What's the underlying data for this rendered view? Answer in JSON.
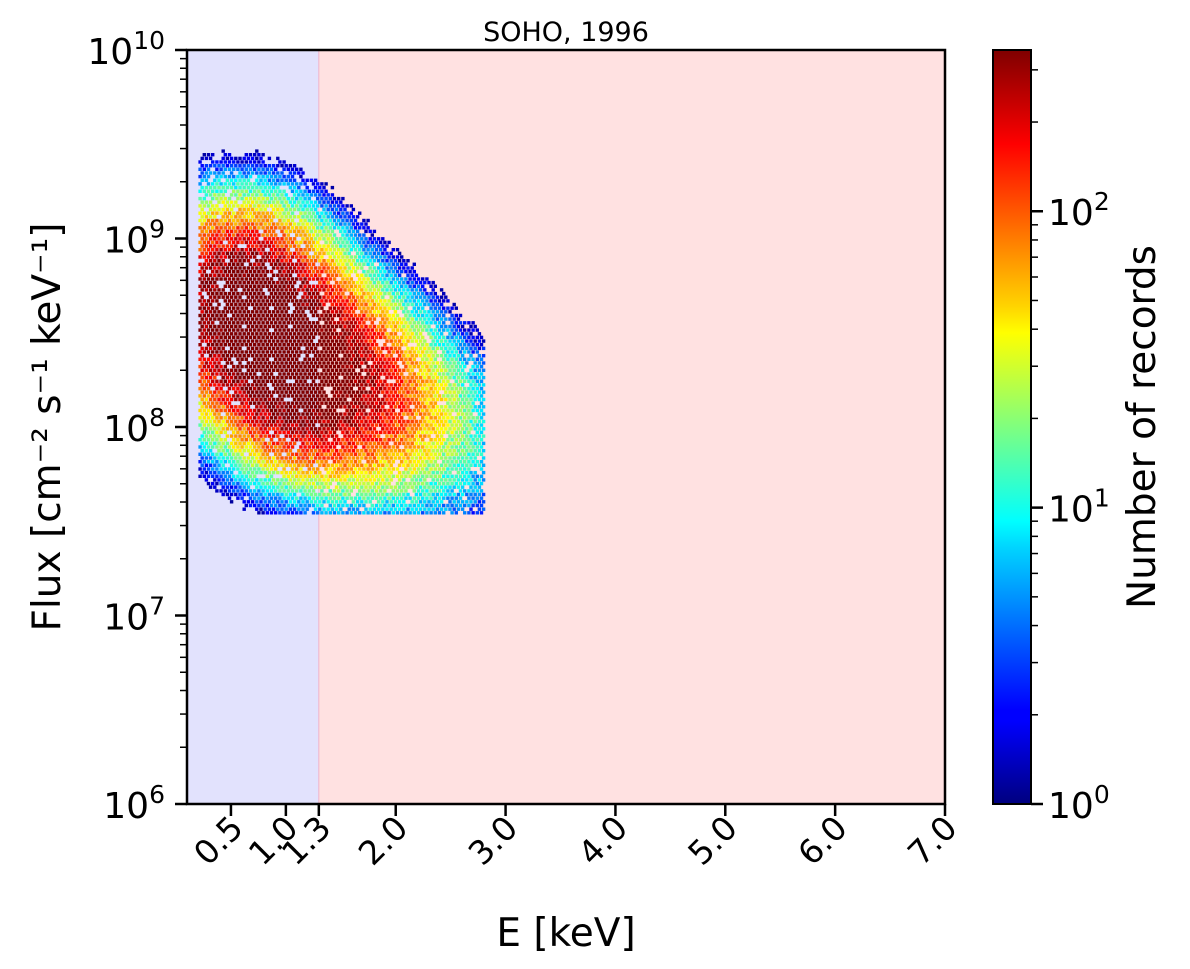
{
  "chart_data": {
    "type": "heatmap",
    "title": "SOHO, 1996",
    "xlabel": "E [keV]",
    "ylabel": "Flux [cm⁻² s⁻¹ keV⁻¹]",
    "xlim": [
      0.1,
      7.0
    ],
    "ylim": [
      1000000,
      10000000000
    ],
    "y_scale": "log",
    "x_ticks": [
      "0.5",
      "1.0",
      "1.3",
      "2.0",
      "3.0",
      "4.0",
      "5.0",
      "6.0",
      "7.0"
    ],
    "x_tick_values": [
      0.5,
      1.0,
      1.3,
      2.0,
      3.0,
      4.0,
      5.0,
      6.0,
      7.0
    ],
    "y_tick_exponents": [
      "6",
      "7",
      "8",
      "9",
      "10"
    ],
    "colorbar": {
      "label": "Number of records",
      "scale": "log",
      "range": [
        1,
        350
      ],
      "tick_exponents": [
        "0",
        "1",
        "2"
      ],
      "colormap": "jet"
    },
    "shaded_regions": [
      {
        "x_from": 0.1,
        "x_to": 1.3,
        "color": "#e2e2fd"
      },
      {
        "x_from": 1.3,
        "x_to": 7.0,
        "color": "#ffe1e1"
      }
    ],
    "density_peaks": [
      {
        "E": 0.55,
        "flux": 500000000,
        "count": 300
      },
      {
        "E": 0.75,
        "flux": 350000000,
        "count": 320
      },
      {
        "E": 1.0,
        "flux": 250000000,
        "count": 300
      },
      {
        "E": 1.15,
        "flux": 180000000,
        "count": 250
      },
      {
        "E": 1.4,
        "flux": 180000000,
        "count": 150
      },
      {
        "E": 1.7,
        "flux": 140000000,
        "count": 100
      },
      {
        "E": 2.1,
        "flux": 110000000,
        "count": 30
      },
      {
        "E": 2.5,
        "flux": 90000000,
        "count": 5
      },
      {
        "E": 2.6,
        "flux": 50000000,
        "count": 2
      }
    ]
  }
}
